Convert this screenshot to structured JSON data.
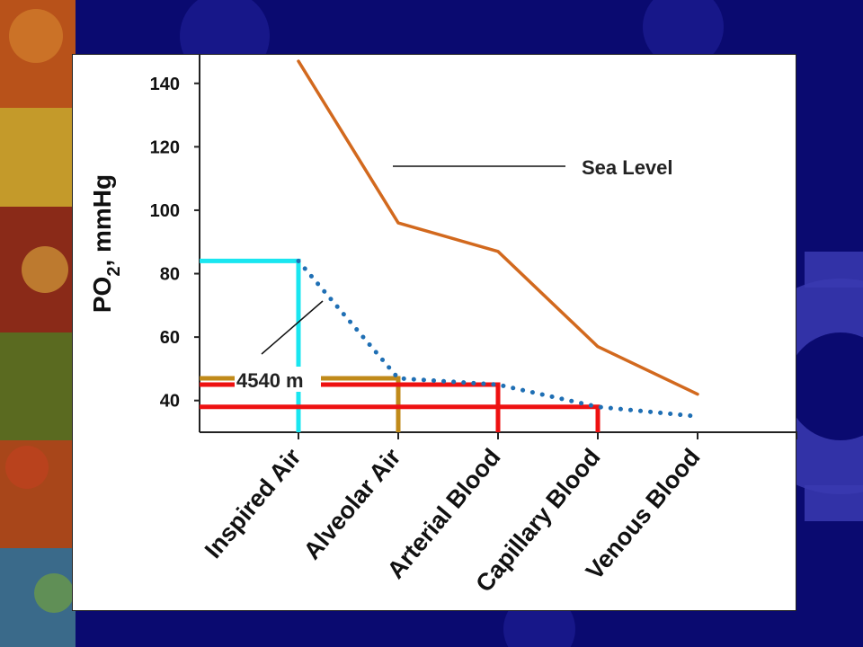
{
  "chart_data": {
    "type": "line",
    "categories": [
      "Inspired Air",
      "Alveolar Air",
      "Arterial Blood",
      "Capillary Blood",
      "Venous Blood"
    ],
    "ylabel": "PO2, mmHg",
    "ylabel_main": "PO",
    "ylabel_sub": "2",
    "ylabel_rest": ", mmHg",
    "ylim": [
      30,
      149
    ],
    "yticks": [
      "140",
      "120",
      "100",
      "80",
      "60",
      "40"
    ],
    "grid": false,
    "series": [
      {
        "name": "Sea Level",
        "values": [
          147,
          96,
          87,
          57,
          42
        ],
        "color": "#d2691e",
        "style": "solid"
      },
      {
        "name": "4540 m",
        "values": [
          84,
          47,
          45,
          38,
          35
        ],
        "color": "#1f6fb4",
        "style": "dotted"
      }
    ],
    "highlight_colors": {
      "cyan": "#19e6f0",
      "gold": "#c08a1a",
      "red": "#ee1111"
    }
  },
  "annotations": {
    "sea_level": "Sea Level",
    "altitude": "4540 m"
  }
}
